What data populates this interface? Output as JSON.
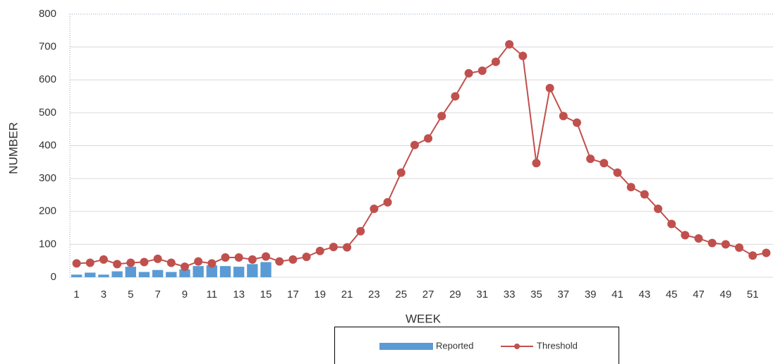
{
  "chart_data": {
    "type": "bar_line",
    "x_label": "WEEK",
    "y_label": "NUMBER",
    "categories": [
      1,
      null,
      3,
      null,
      5,
      null,
      7,
      null,
      9,
      null,
      11,
      null,
      13,
      null,
      15,
      null,
      17,
      null,
      19,
      null,
      21,
      null,
      23,
      null,
      25,
      null,
      27,
      null,
      29,
      null,
      31,
      null,
      33,
      null,
      35,
      null,
      37,
      null,
      39,
      null,
      41,
      null,
      43,
      null,
      45,
      null,
      47,
      null,
      49,
      null,
      51,
      null
    ],
    "series": [
      {
        "name": "Reported",
        "type": "bar",
        "color": "#5b9bd5",
        "values": [
          8,
          14,
          8,
          18,
          32,
          16,
          22,
          16,
          24,
          34,
          36,
          34,
          32,
          40,
          46,
          null,
          null,
          null,
          null,
          null,
          null,
          null,
          null,
          null,
          null,
          null,
          null,
          null,
          null,
          null,
          null,
          null,
          null,
          null,
          null,
          null,
          null,
          null,
          null,
          null,
          null,
          null,
          null,
          null,
          null,
          null,
          null,
          null,
          null,
          null,
          null,
          null
        ]
      },
      {
        "name": "Threshold",
        "type": "line",
        "color": "#c0504d",
        "values": [
          42,
          44,
          54,
          40,
          44,
          46,
          56,
          44,
          32,
          48,
          42,
          60,
          60,
          54,
          63,
          48,
          54,
          62,
          80,
          92,
          91,
          140,
          208,
          228,
          318,
          402,
          422,
          490,
          550,
          620,
          628,
          655,
          708,
          673,
          347,
          575,
          490,
          470,
          360,
          347,
          318,
          274,
          252,
          208,
          162,
          128,
          118,
          104,
          100,
          90,
          66,
          74
        ]
      }
    ],
    "ylim": [
      0,
      800
    ],
    "yticks": [
      0,
      100,
      200,
      300,
      400,
      500,
      600,
      700,
      800
    ],
    "grid": true,
    "legend": "bottom"
  }
}
